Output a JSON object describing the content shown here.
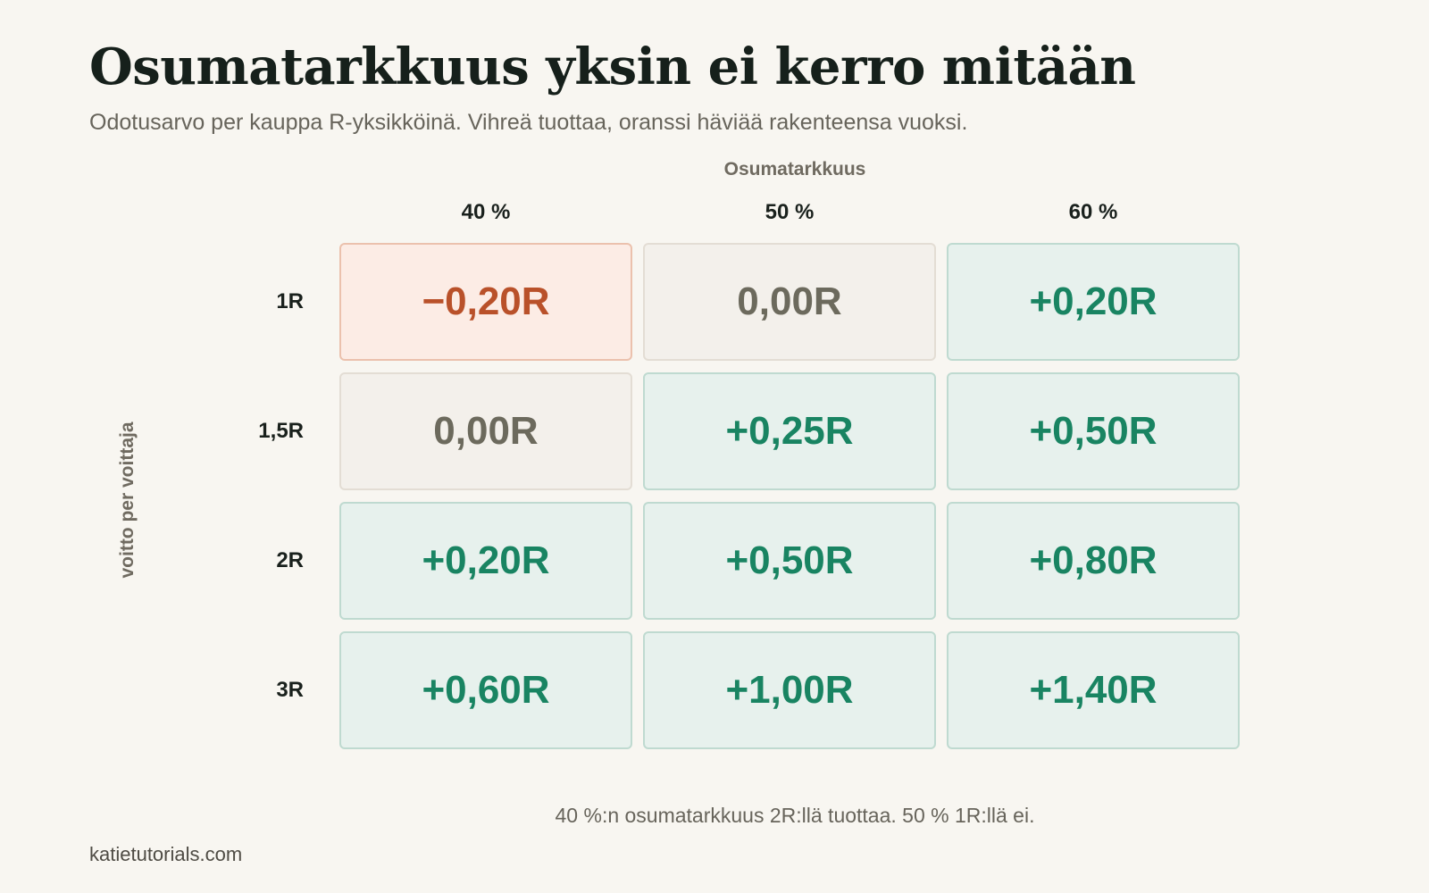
{
  "header": {
    "title": "Osumatarkkuus yksin ei kerro mitään",
    "subtitle": "Odotusarvo per kauppa R-yksikköinä. Vihreä tuottaa, oranssi häviää rakenteensa vuoksi."
  },
  "footer": {
    "note": "40 %:n osumatarkkuus 2R:llä tuottaa. 50 % 1R:llä ei.",
    "source": "katietutorials.com"
  },
  "colors": {
    "background": "#f8f6f1",
    "positive_text": "#198462",
    "positive_fill": "#e7f1ed",
    "negative_text": "#b9512a",
    "negative_fill": "#fcece5",
    "neutral_text": "#6c6a5d",
    "neutral_fill": "#f3f0eb"
  },
  "chart_data": {
    "type": "heatmap",
    "title": "Osumatarkkuus yksin ei kerro mitään",
    "subtitle": "Odotusarvo per kauppa R-yksikköinä. Vihreä tuottaa, oranssi häviää rakenteensa vuoksi.",
    "xlabel": "Osumatarkkuus",
    "ylabel": "voitto per voittaja",
    "columns": [
      "40 %",
      "50 %",
      "60 %"
    ],
    "rows": [
      "1R",
      "1,5R",
      "2R",
      "3R"
    ],
    "values": [
      [
        -0.2,
        0.0,
        0.2
      ],
      [
        0.0,
        0.25,
        0.5
      ],
      [
        0.2,
        0.5,
        0.8
      ],
      [
        0.6,
        1.0,
        1.4
      ]
    ],
    "labels": [
      [
        "−0,20R",
        "0,00R",
        "+0,20R"
      ],
      [
        "0,00R",
        "+0,25R",
        "+0,50R"
      ],
      [
        "+0,20R",
        "+0,50R",
        "+0,80R"
      ],
      [
        "+0,60R",
        "+1,00R",
        "+1,40R"
      ]
    ],
    "unit": "R",
    "color_rule": {
      "positive": "green",
      "zero": "neutral",
      "negative": "orange"
    }
  }
}
